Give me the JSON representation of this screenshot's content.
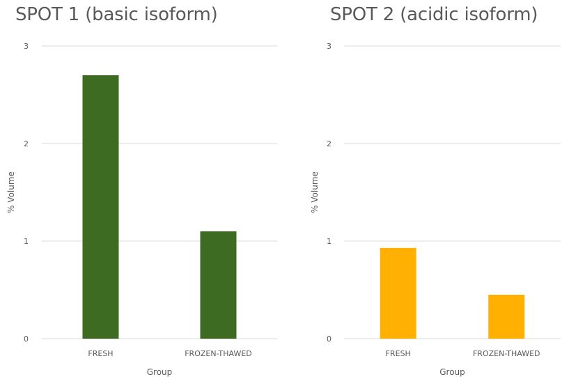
{
  "chart_data": [
    {
      "type": "bar",
      "title": "SPOT 1 (basic isoform)",
      "xlabel": "Group",
      "ylabel": "% Volume",
      "categories": [
        "FRESH",
        "FROZEN-THAWED"
      ],
      "values": [
        2.7,
        1.1
      ],
      "ylim": [
        0,
        3
      ],
      "yticks": [
        "0",
        "1",
        "2",
        "3"
      ],
      "grid": true,
      "color": "#3d6b21"
    },
    {
      "type": "bar",
      "title": "SPOT 2 (acidic isoform)",
      "xlabel": "Group",
      "ylabel": "% Volume",
      "categories": [
        "FRESH",
        "FROZEN-THAWED"
      ],
      "values": [
        0.93,
        0.45
      ],
      "ylim": [
        0,
        3
      ],
      "yticks": [
        "0",
        "1",
        "2",
        "3"
      ],
      "grid": true,
      "color": "#ffb000"
    }
  ]
}
